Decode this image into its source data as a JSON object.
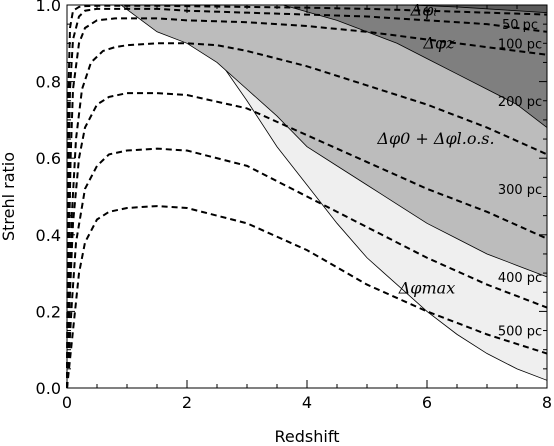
{
  "chart_data": {
    "type": "line",
    "xlabel": "Redshift",
    "ylabel": "Strehl ratio",
    "xlim": [
      0,
      8
    ],
    "ylim": [
      0,
      1.0
    ],
    "x_ticks": [
      0,
      2,
      4,
      6,
      8
    ],
    "y_ticks": [
      0.0,
      0.2,
      0.4,
      0.6,
      0.8,
      1.0
    ],
    "x_tick_labels": [
      "0",
      "2",
      "4",
      "6",
      "8"
    ],
    "y_tick_labels": [
      "0.0",
      "0.2",
      "0.4",
      "0.6",
      "0.8",
      "1.0"
    ],
    "regions": [
      {
        "label": "Δφmax",
        "fill": "#efefef",
        "lower": [
          [
            1.2,
            1.0
          ],
          [
            2.0,
            0.93
          ],
          [
            2.6,
            0.84
          ],
          [
            3.0,
            0.75
          ],
          [
            3.5,
            0.63
          ],
          [
            4.0,
            0.53
          ],
          [
            4.5,
            0.43
          ],
          [
            5.0,
            0.34
          ],
          [
            5.5,
            0.27
          ],
          [
            6.0,
            0.2
          ],
          [
            6.5,
            0.14
          ],
          [
            7.0,
            0.09
          ],
          [
            7.5,
            0.05
          ],
          [
            8.0,
            0.02
          ]
        ]
      },
      {
        "label": "Δφ0 + Δφl.o.s.",
        "fill": "#bcbcbc",
        "lower": [
          [
            0.9,
            1.0
          ],
          [
            1.5,
            0.93
          ],
          [
            2.0,
            0.9
          ],
          [
            2.5,
            0.85
          ],
          [
            3.0,
            0.78
          ],
          [
            3.5,
            0.71
          ],
          [
            4.0,
            0.63
          ],
          [
            4.5,
            0.58
          ],
          [
            5.0,
            0.53
          ],
          [
            5.5,
            0.48
          ],
          [
            6.0,
            0.43
          ],
          [
            6.5,
            0.39
          ],
          [
            7.0,
            0.35
          ],
          [
            7.5,
            0.32
          ],
          [
            8.0,
            0.29
          ]
        ]
      },
      {
        "label": "Δφz",
        "fill": "#7f7f7f",
        "lower": [
          [
            3.6,
            1.0
          ],
          [
            4.5,
            0.96
          ],
          [
            5.0,
            0.93
          ],
          [
            5.5,
            0.9
          ],
          [
            6.0,
            0.86
          ],
          [
            6.5,
            0.82
          ],
          [
            7.0,
            0.78
          ],
          [
            7.5,
            0.74
          ],
          [
            8.0,
            0.68
          ]
        ]
      },
      {
        "label": "Δφ",
        "fill": "#5a5a5a",
        "lower": [
          [
            5.7,
            1.0
          ],
          [
            6.5,
            0.995
          ],
          [
            7.5,
            0.985
          ],
          [
            8.0,
            0.98
          ]
        ]
      }
    ],
    "series": [
      {
        "name": "",
        "x": [
          0,
          0.02,
          0.05,
          0.1,
          0.2,
          0.3,
          0.5,
          0.8,
          1.0,
          1.5,
          2.0,
          3.0,
          4.0,
          5.0,
          6.0,
          7.0,
          8.0
        ],
        "values": [
          0.0,
          0.75,
          0.94,
          0.985,
          0.995,
          0.997,
          0.998,
          0.998,
          0.998,
          0.998,
          0.997,
          0.995,
          0.993,
          0.99,
          0.985,
          0.98,
          0.975
        ]
      },
      {
        "name": "",
        "x": [
          0,
          0.02,
          0.05,
          0.1,
          0.2,
          0.3,
          0.5,
          0.8,
          1.0,
          1.5,
          2.0,
          3.0,
          4.0,
          5.0,
          6.0,
          7.0,
          8.0
        ],
        "values": [
          0.0,
          0.5,
          0.78,
          0.91,
          0.97,
          0.985,
          0.99,
          0.99,
          0.99,
          0.99,
          0.985,
          0.98,
          0.975,
          0.97,
          0.96,
          0.95,
          0.93
        ]
      },
      {
        "name": "",
        "x": [
          0,
          0.03,
          0.06,
          0.1,
          0.2,
          0.3,
          0.5,
          0.8,
          1.0,
          1.5,
          2.0,
          3.0,
          4.0,
          5.0,
          6.0,
          7.0,
          8.0
        ],
        "values": [
          0.0,
          0.35,
          0.6,
          0.78,
          0.9,
          0.94,
          0.96,
          0.965,
          0.965,
          0.965,
          0.96,
          0.955,
          0.945,
          0.93,
          0.91,
          0.89,
          0.87
        ]
      },
      {
        "name": "",
        "x": [
          0,
          0.04,
          0.08,
          0.15,
          0.25,
          0.4,
          0.6,
          0.8,
          1.0,
          1.5,
          2.0,
          2.5,
          3.0,
          4.0,
          5.0,
          6.0,
          7.0,
          8.0
        ],
        "values": [
          0.0,
          0.25,
          0.45,
          0.65,
          0.78,
          0.85,
          0.88,
          0.89,
          0.895,
          0.9,
          0.9,
          0.895,
          0.88,
          0.84,
          0.79,
          0.74,
          0.68,
          0.61
        ]
      },
      {
        "name": "",
        "x": [
          0,
          0.05,
          0.1,
          0.2,
          0.3,
          0.5,
          0.7,
          1.0,
          1.5,
          2.0,
          3.0,
          4.0,
          5.0,
          6.0,
          7.0,
          8.0
        ],
        "values": [
          0.0,
          0.25,
          0.43,
          0.6,
          0.68,
          0.74,
          0.76,
          0.77,
          0.77,
          0.765,
          0.73,
          0.66,
          0.59,
          0.52,
          0.46,
          0.39
        ]
      },
      {
        "name": "",
        "x": [
          0,
          0.08,
          0.15,
          0.3,
          0.5,
          0.7,
          1.0,
          1.5,
          2.0,
          3.0,
          4.0,
          5.0,
          6.0,
          7.0,
          8.0
        ],
        "values": [
          0.0,
          0.22,
          0.38,
          0.52,
          0.58,
          0.61,
          0.62,
          0.625,
          0.62,
          0.58,
          0.5,
          0.42,
          0.34,
          0.27,
          0.21
        ]
      },
      {
        "name": "",
        "x": [
          0,
          0.1,
          0.2,
          0.3,
          0.5,
          0.7,
          1.0,
          1.5,
          2.0,
          3.0,
          4.0,
          5.0,
          6.0,
          7.0,
          8.0
        ],
        "values": [
          0.0,
          0.15,
          0.3,
          0.38,
          0.44,
          0.46,
          0.47,
          0.475,
          0.47,
          0.43,
          0.36,
          0.27,
          0.2,
          0.14,
          0.09
        ]
      }
    ],
    "curve_labels": [
      {
        "text": "50 pc",
        "x": 7.55,
        "y": 0.95
      },
      {
        "text": "100 pc",
        "x": 7.55,
        "y": 0.9
      },
      {
        "text": "200 pc",
        "x": 7.55,
        "y": 0.75
      },
      {
        "text": "300 pc",
        "x": 7.55,
        "y": 0.52
      },
      {
        "text": "400 pc",
        "x": 7.55,
        "y": 0.29
      },
      {
        "text": "500 pc",
        "x": 7.55,
        "y": 0.15
      }
    ],
    "region_labels": [
      {
        "text": "Δφₗ",
        "x": 5.95,
        "y": 0.985
      },
      {
        "text": "Δφz",
        "x": 6.2,
        "y": 0.9
      },
      {
        "text": "Δφ0 + Δφl.o.s.",
        "x": 6.15,
        "y": 0.65
      },
      {
        "text": "Δφmax",
        "x": 6.0,
        "y": 0.26
      }
    ]
  }
}
